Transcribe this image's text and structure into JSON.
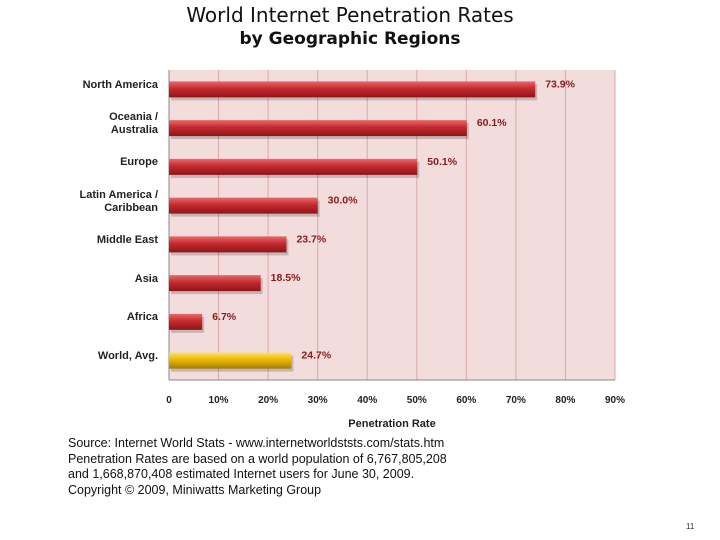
{
  "slide": {
    "title_line1": "World Internet Penetration Rates",
    "title_line2": "by Geographic Regions",
    "page_number": "11"
  },
  "source": {
    "line1": "Source: Internet World Stats - www.internetworldststs.com/stats.htm",
    "line2": "Penetration Rates are based on a world population of 6,767,805,208",
    "line3": "and 1,668,870,408 estimated Internet users for June 30, 2009.",
    "line4": "Copyright © 2009, Miniwatts Marketing Group"
  },
  "colors": {
    "bar": "#c0272d",
    "bar_highlight": "#e8b800",
    "plot_bg": "#f3dcdc",
    "grid": "#d9a9a9",
    "value_label": "#8b1a1a"
  },
  "chart_data": {
    "type": "bar",
    "orientation": "horizontal",
    "title": "World Internet Penetration Rates by Geographic Regions",
    "xlabel": "Penetration Rate",
    "ylabel": "",
    "xlim": [
      0,
      90
    ],
    "xticks": [
      "0",
      "10%",
      "20%",
      "30%",
      "40%",
      "50%",
      "60%",
      "70%",
      "80%",
      "90%"
    ],
    "categories": [
      {
        "label_lines": [
          "North America"
        ],
        "value": 73.9,
        "value_label": "73.9%",
        "highlight": false
      },
      {
        "label_lines": [
          "Oceania  /",
          "Australia"
        ],
        "value": 60.1,
        "value_label": "60.1%",
        "highlight": false
      },
      {
        "label_lines": [
          "Europe"
        ],
        "value": 50.1,
        "value_label": "50.1%",
        "highlight": false
      },
      {
        "label_lines": [
          "Latin America /",
          "Caribbean"
        ],
        "value": 30.0,
        "value_label": "30.0%",
        "highlight": false
      },
      {
        "label_lines": [
          "Middle East"
        ],
        "value": 23.7,
        "value_label": "23.7%",
        "highlight": false
      },
      {
        "label_lines": [
          "Asia"
        ],
        "value": 18.5,
        "value_label": "18.5%",
        "highlight": false
      },
      {
        "label_lines": [
          "Africa"
        ],
        "value": 6.7,
        "value_label": "6.7%",
        "highlight": false
      },
      {
        "label_lines": [
          "World, Avg."
        ],
        "value": 24.7,
        "value_label": "24.7%",
        "highlight": true
      }
    ],
    "grid": true,
    "legend": "none"
  }
}
